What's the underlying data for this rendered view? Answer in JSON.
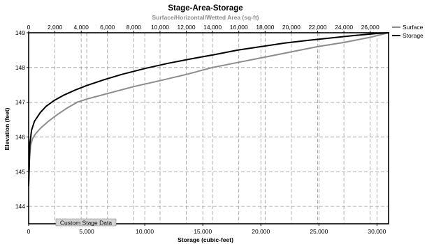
{
  "chart_data": {
    "type": "line",
    "title": "Stage-Area-Storage",
    "xlabel": "Storage (cubic-feet)",
    "x2label": "Surface/Horizontal/Wetted Area (sq-ft)",
    "ylabel": "Elevation  (feet)",
    "xlim": [
      0,
      31000
    ],
    "x2lim": [
      0,
      27400
    ],
    "ylim": [
      143.5,
      149
    ],
    "x_ticks": [
      0,
      5000,
      10000,
      15000,
      20000,
      25000,
      30000
    ],
    "x_tick_labels": [
      "0",
      "5,000",
      "10,000",
      "15,000",
      "20,000",
      "25,000",
      "30,000"
    ],
    "x2_ticks": [
      0,
      2000,
      4000,
      6000,
      8000,
      10000,
      12000,
      14000,
      16000,
      18000,
      20000,
      22000,
      24000,
      26000
    ],
    "x2_tick_labels": [
      "0",
      "2,000",
      "4,000",
      "6,000",
      "8,000",
      "10,000",
      "12,000",
      "14,000",
      "16,000",
      "18,000",
      "20,000",
      "22,000",
      "24,000",
      "26,000"
    ],
    "y_ticks": [
      144,
      145,
      146,
      147,
      148,
      149
    ],
    "y_tick_labels": [
      "144",
      "145",
      "146",
      "147",
      "148",
      "149"
    ],
    "grid": true,
    "legend_position": "right",
    "annotation": "Custom Stage Data",
    "series": [
      {
        "name": "Surface",
        "axis": "top",
        "color": "#8c8c8c",
        "x": [
          0,
          70,
          150,
          300,
          500,
          900,
          1500,
          2200,
          3000,
          3700,
          4500,
          6000,
          8000,
          10000,
          12000,
          14000,
          16000,
          18000,
          20000,
          22000,
          24000,
          26000,
          27400
        ],
        "y": [
          144.6,
          145.4,
          145.75,
          145.95,
          146.08,
          146.25,
          146.45,
          146.65,
          146.85,
          147.0,
          147.1,
          147.25,
          147.45,
          147.62,
          147.8,
          148.0,
          148.15,
          148.3,
          148.45,
          148.6,
          148.72,
          148.87,
          149.0
        ]
      },
      {
        "name": "Storage",
        "axis": "bottom",
        "color": "#000000",
        "x": [
          0,
          100,
          250,
          500,
          1000,
          1500,
          2200,
          3000,
          4000,
          5000,
          6500,
          8000,
          10000,
          12000,
          14000,
          16000,
          18000,
          20000,
          22000,
          24000,
          26000,
          28000,
          30000,
          31000
        ],
        "y": [
          144.6,
          145.8,
          146.2,
          146.45,
          146.7,
          146.88,
          147.05,
          147.2,
          147.35,
          147.48,
          147.65,
          147.8,
          147.97,
          148.12,
          148.25,
          148.37,
          148.5,
          148.6,
          148.7,
          148.78,
          148.85,
          148.92,
          148.98,
          149.0
        ]
      }
    ]
  }
}
